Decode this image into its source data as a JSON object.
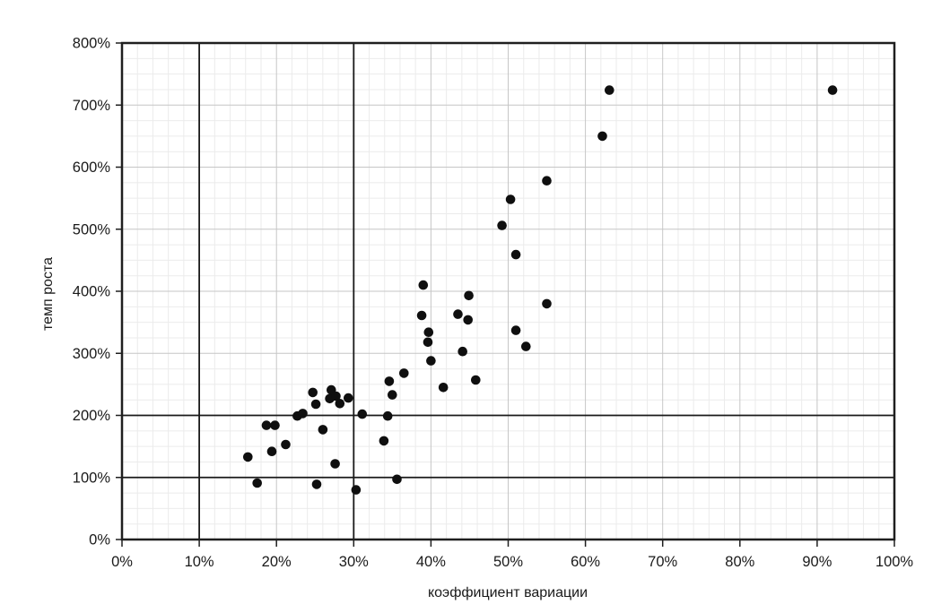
{
  "chart_data": {
    "type": "scatter",
    "title": "",
    "xlabel": "коэффициент вариации",
    "ylabel": "темп роста",
    "x_axis": {
      "min": 0,
      "max": 100,
      "major_step": 10,
      "minor_step": 2,
      "tick_labels": [
        "0%",
        "10%",
        "20%",
        "30%",
        "40%",
        "50%",
        "60%",
        "70%",
        "80%",
        "90%",
        "100%"
      ]
    },
    "y_axis": {
      "min": 0,
      "max": 800,
      "major_step": 100,
      "minor_step": 25,
      "tick_labels": [
        "0%",
        "100%",
        "200%",
        "300%",
        "400%",
        "500%",
        "600%",
        "700%",
        "800%"
      ]
    },
    "reference_lines": {
      "x": [
        10,
        30
      ],
      "y": [
        100,
        200
      ]
    },
    "grid": "on",
    "legend": "none",
    "marker": {
      "shape": "circle",
      "radius": 5.3,
      "color": "#0f0f0f"
    },
    "colors": {
      "minor_grid": "#ebebeb",
      "major_grid": "#c6c6c6",
      "frame": "#1f1f1f",
      "reference_line": "#1a1a1a",
      "text": "#1a1a1a"
    },
    "points": [
      [
        16.3,
        133
      ],
      [
        17.5,
        91
      ],
      [
        18.7,
        184
      ],
      [
        19.8,
        184
      ],
      [
        19.4,
        142
      ],
      [
        21.2,
        153
      ],
      [
        22.7,
        199
      ],
      [
        23.4,
        203
      ],
      [
        24.7,
        237
      ],
      [
        25.1,
        218
      ],
      [
        25.2,
        89
      ],
      [
        26.0,
        177
      ],
      [
        26.9,
        227
      ],
      [
        27.1,
        241
      ],
      [
        27.7,
        231
      ],
      [
        28.2,
        219
      ],
      [
        29.3,
        228
      ],
      [
        27.6,
        122
      ],
      [
        30.3,
        80
      ],
      [
        31.1,
        202
      ],
      [
        34.4,
        199
      ],
      [
        33.9,
        159
      ],
      [
        35.6,
        97
      ],
      [
        35.0,
        233
      ],
      [
        34.6,
        255
      ],
      [
        36.5,
        268
      ],
      [
        39.0,
        410
      ],
      [
        38.8,
        361
      ],
      [
        39.7,
        334
      ],
      [
        39.6,
        318
      ],
      [
        40.0,
        288
      ],
      [
        41.6,
        245
      ],
      [
        43.5,
        363
      ],
      [
        44.9,
        393
      ],
      [
        44.8,
        354
      ],
      [
        44.1,
        303
      ],
      [
        45.8,
        257
      ],
      [
        49.2,
        506
      ],
      [
        50.3,
        548
      ],
      [
        51.0,
        459
      ],
      [
        51.0,
        337
      ],
      [
        52.3,
        311
      ],
      [
        55.0,
        578
      ],
      [
        55.0,
        380
      ],
      [
        62.2,
        650
      ],
      [
        63.1,
        724
      ],
      [
        92.0,
        724
      ]
    ]
  }
}
